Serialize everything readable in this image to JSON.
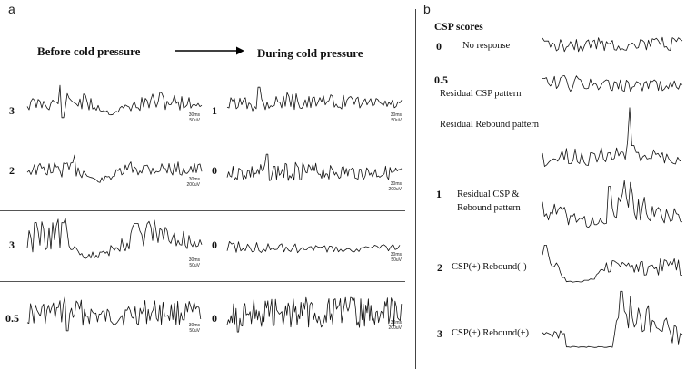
{
  "panels": {
    "a": {
      "letter": "a",
      "header_before": "Before cold pressure",
      "header_during": "During cold pressure",
      "rows": [
        {
          "before_score": "3",
          "during_score": "1",
          "before_scale": [
            "30ms",
            "50uV"
          ],
          "during_scale": [
            "30ms",
            "50uV"
          ]
        },
        {
          "before_score": "2",
          "during_score": "0",
          "before_scale": [
            "30ms",
            "200uV"
          ],
          "during_scale": [
            "30ms",
            "200uV"
          ]
        },
        {
          "before_score": "3",
          "during_score": "0",
          "before_scale": [
            "30ms",
            "50uV"
          ],
          "during_scale": [
            "30ms",
            "50uV"
          ]
        },
        {
          "before_score": "0.5",
          "during_score": "0",
          "before_scale": [
            "30ms",
            "50uV"
          ],
          "during_scale": [
            "30ms",
            "200uV"
          ]
        }
      ]
    },
    "b": {
      "letter": "b",
      "title": "CSP scores",
      "items": [
        {
          "score": "0",
          "lines": [
            "No response"
          ]
        },
        {
          "score": "0.5",
          "lines": [
            "Residual CSP pattern"
          ]
        },
        {
          "score": "",
          "lines": [
            "Residual Rebound pattern"
          ]
        },
        {
          "score": "1",
          "lines": [
            "Residual CSP &",
            "Rebound pattern"
          ]
        },
        {
          "score": "2",
          "lines": [
            "CSP(+) Rebound(-)"
          ]
        },
        {
          "score": "3",
          "lines": [
            "CSP(+) Rebound(+)"
          ]
        }
      ]
    }
  }
}
